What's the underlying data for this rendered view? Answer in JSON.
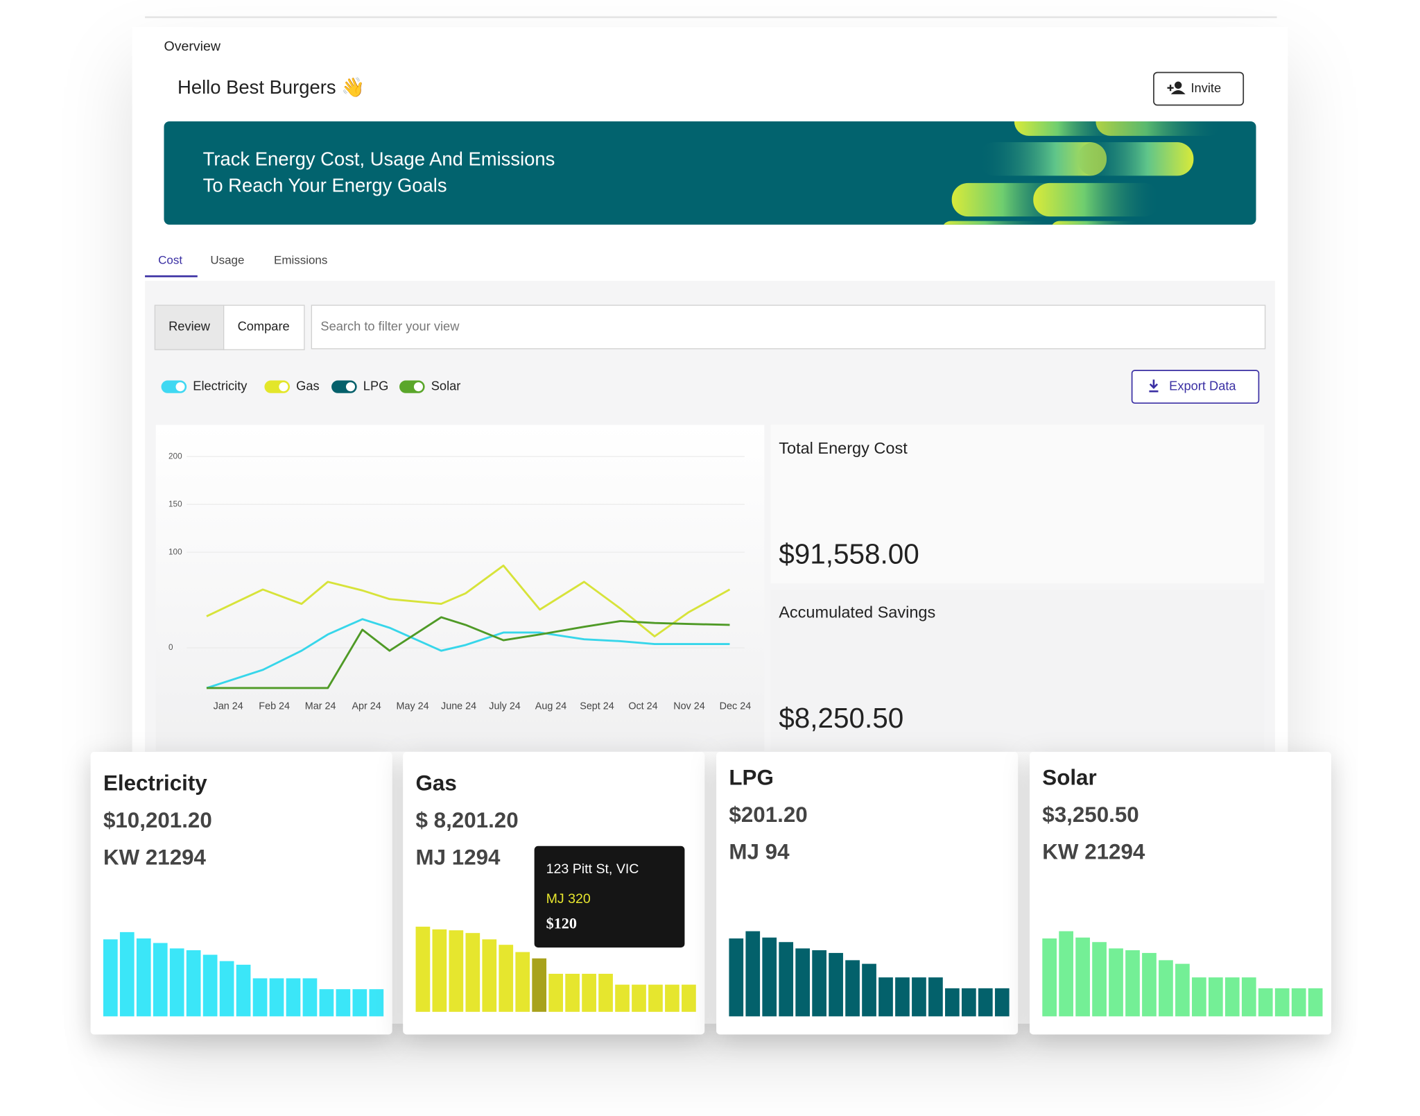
{
  "header": {
    "breadcrumb": "Overview",
    "greeting": "Hello Best Burgers 👋",
    "invite": "Invite"
  },
  "banner": {
    "line1": "Track Energy Cost, Usage And Emissions",
    "line2": "To Reach Your Energy Goals"
  },
  "tabs": [
    "Cost",
    "Usage",
    "Emissions"
  ],
  "view_toggle": [
    "Review",
    "Compare"
  ],
  "search_placeholder": "Search to filter your view",
  "filters": [
    {
      "name": "Electricity",
      "color": "#3fd8f2"
    },
    {
      "name": "Gas",
      "color": "#e3e62a"
    },
    {
      "name": "LPG",
      "color": "#05606b"
    },
    {
      "name": "Solar",
      "color": "#5aa62a"
    }
  ],
  "export": "Export Data",
  "chart_data": {
    "type": "line",
    "x": [
      0.53,
      1.75,
      2.59,
      3.16,
      3.91,
      4.5,
      5.62,
      6.15,
      6.97,
      7.76,
      8.72,
      9.51,
      10.25,
      10.98,
      11.88
    ],
    "xlim": [
      0,
      12.4
    ],
    "xticks": [
      {
        "value": 1,
        "label": "Jan 24"
      },
      {
        "value": 2,
        "label": "Feb 24"
      },
      {
        "value": 3,
        "label": "Mar 24"
      },
      {
        "value": 4,
        "label": "Apr 24"
      },
      {
        "value": 5,
        "label": "May 24"
      },
      {
        "value": 6,
        "label": "June 24"
      },
      {
        "value": 7,
        "label": "July 24"
      },
      {
        "value": 8,
        "label": "Aug 24"
      },
      {
        "value": 9,
        "label": "Sept 24"
      },
      {
        "value": 10,
        "label": "Oct 24"
      },
      {
        "value": 11,
        "label": "Nov 24"
      },
      {
        "value": 12,
        "label": "Dec 24"
      }
    ],
    "ylim": [
      -50,
      200
    ],
    "yticks": [
      0,
      100,
      150,
      200
    ],
    "grid": true,
    "series": [
      {
        "color": "#d7e33a",
        "values": [
          33,
          61,
          46,
          69,
          60,
          51,
          46,
          57,
          86,
          40,
          69,
          41,
          12,
          37,
          61
        ]
      },
      {
        "color": "#37d6ea",
        "values": [
          -42,
          -23,
          -3,
          14,
          30,
          21,
          -3,
          3,
          16,
          16,
          9,
          7,
          4,
          4,
          4
        ]
      },
      {
        "color": "#4f9a26",
        "values": [
          -42,
          -42,
          -42,
          -42,
          19,
          -3,
          32,
          24,
          8,
          14,
          22,
          28,
          26,
          25,
          24
        ]
      }
    ]
  },
  "summary": [
    {
      "title": "Total Energy Cost",
      "value": "$91,558.00"
    },
    {
      "title": "Accumulated Savings",
      "value": "$8,250.50"
    }
  ],
  "cards": [
    {
      "title": "Electricity",
      "cost": "$10,201.20",
      "usage": "KW 21294",
      "color": "#3be6f8",
      "bars": [
        85,
        93,
        86,
        81,
        75,
        73,
        68,
        61,
        57,
        42,
        42,
        42,
        42,
        30,
        30,
        30,
        30
      ]
    },
    {
      "title": "Gas",
      "cost": "$ 8,201.20",
      "usage": "MJ 1294",
      "color": "#e6e62e",
      "highlight": 7,
      "highlight_color": "#a8a21c",
      "bars": [
        94,
        91,
        90,
        87,
        80,
        74,
        66,
        59,
        42,
        42,
        42,
        42,
        30,
        30,
        30,
        30,
        30
      ]
    },
    {
      "title": "LPG",
      "cost": "$201.20",
      "usage": "MJ 94",
      "color": "#03616b",
      "bars": [
        86,
        94,
        87,
        82,
        75,
        73,
        70,
        62,
        58,
        43,
        43,
        43,
        43,
        31,
        31,
        31,
        31
      ]
    },
    {
      "title": "Solar",
      "cost": "$3,250.50",
      "usage": "KW 21294",
      "color": "#74ef96",
      "bars": [
        86,
        94,
        87,
        82,
        75,
        73,
        70,
        62,
        58,
        43,
        43,
        43,
        43,
        31,
        31,
        31,
        31
      ]
    }
  ],
  "tooltip": {
    "address": "123 Pitt St, VIC",
    "usage": "MJ 320",
    "cost": "$120"
  }
}
